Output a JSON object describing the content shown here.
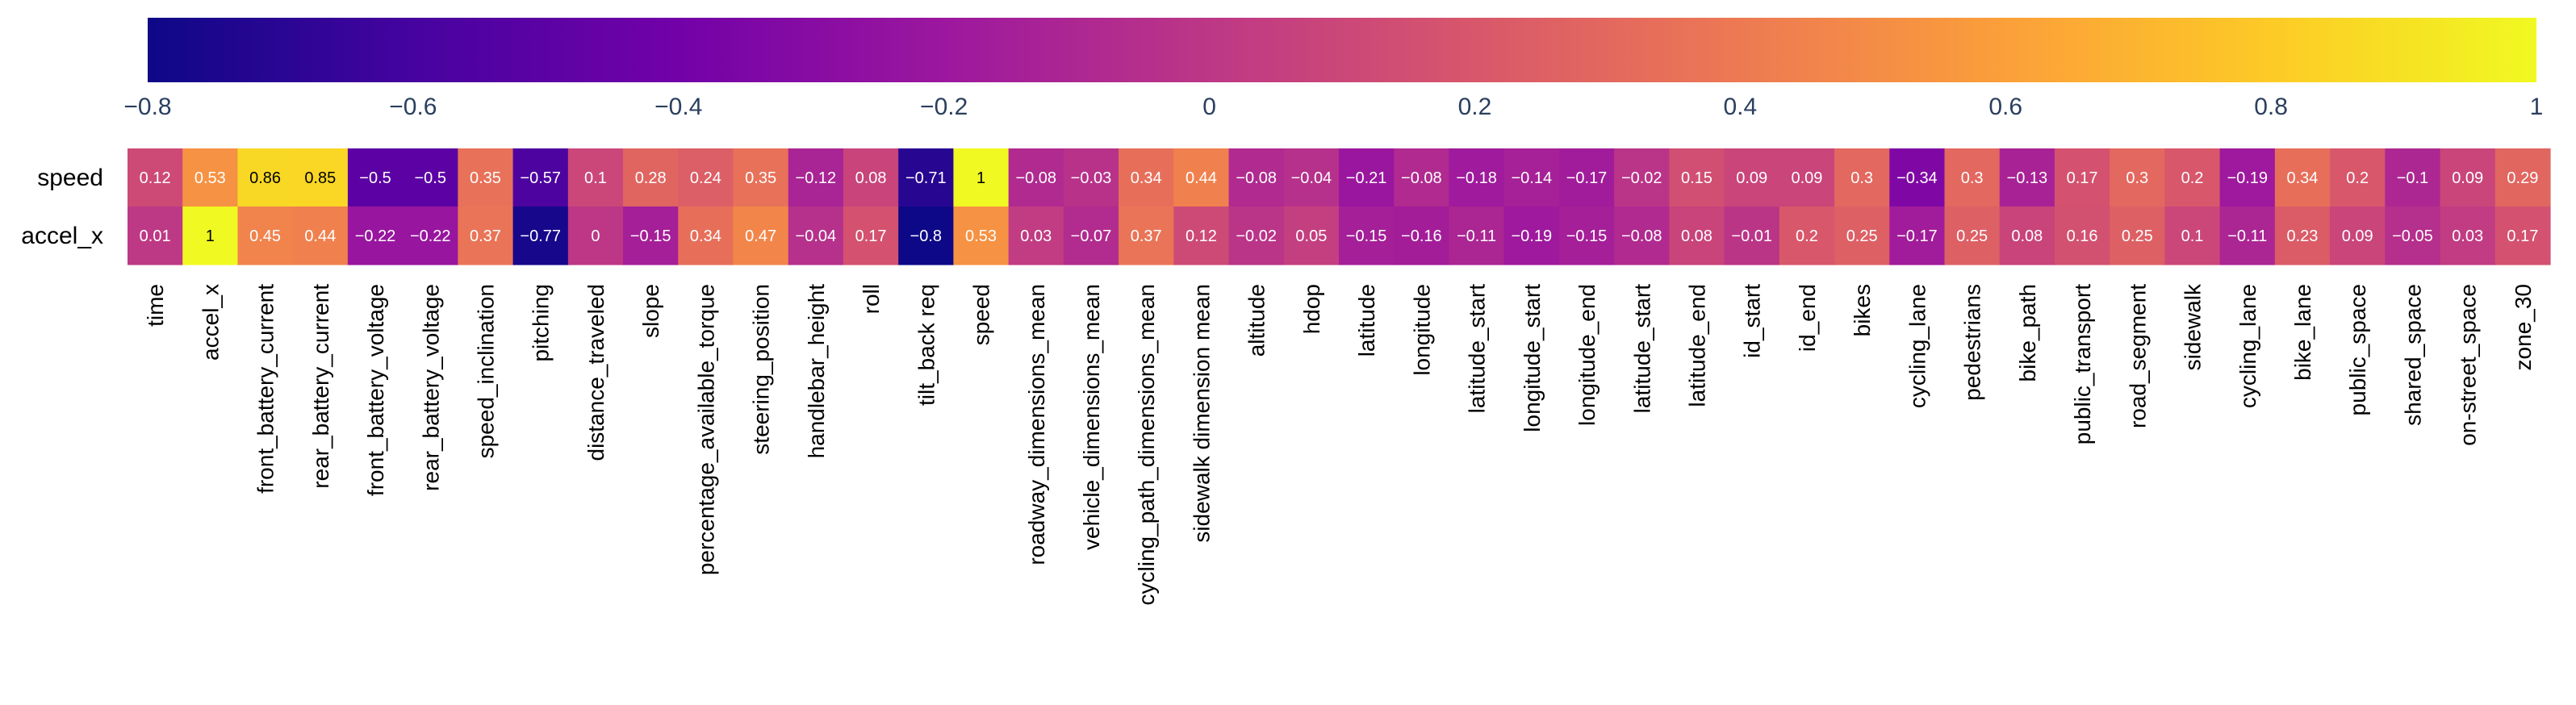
{
  "chart_data": {
    "type": "heatmap",
    "title": "",
    "rows": [
      "speed",
      "accel_x"
    ],
    "columns": [
      "time",
      "accel_x",
      "front_battery_current",
      "rear_battery_current",
      "front_battery_voltage",
      "rear_battery_voltage",
      "speed_inclination",
      "pitching",
      "distance_traveled",
      "slope",
      "percentage_available_torque",
      "steering_position",
      "handlebar_height",
      "roll",
      "tilt_back req",
      "speed",
      "roadway_dimensions_mean",
      "vehicle_dimensions_mean",
      "cycling_path_dimensions_mean",
      "sidewalk dimension mean",
      "altitude",
      "hdop",
      "latitude",
      "longitude",
      "latitude_start",
      "longitude_start",
      "longitude_end",
      "latitude_start",
      "latitude_end",
      "id_start",
      "id_end",
      "bikes",
      "cycling_lane",
      "pedestrians",
      "bike_path",
      "public_transport",
      "road_segment",
      "sidewalk",
      "cycling_lane",
      "bike_lane",
      "public_space",
      "shared_space",
      "on-street_space",
      "zone_30"
    ],
    "values": [
      [
        0.12,
        0.53,
        0.86,
        0.85,
        -0.5,
        -0.5,
        0.35,
        -0.57,
        0.1,
        0.28,
        0.24,
        0.35,
        -0.12,
        0.08,
        -0.71,
        1,
        -0.08,
        -0.03,
        0.34,
        0.44,
        -0.08,
        -0.04,
        -0.21,
        -0.08,
        -0.18,
        -0.14,
        -0.17,
        -0.02,
        0.15,
        0.09,
        0.09,
        0.3,
        -0.34,
        0.3,
        -0.13,
        0.17,
        0.3,
        0.2,
        -0.19,
        0.34,
        0.2,
        -0.1,
        0.09,
        0.29
      ],
      [
        0.01,
        1,
        0.45,
        0.44,
        -0.22,
        -0.22,
        0.37,
        -0.77,
        0,
        -0.15,
        0.34,
        0.47,
        -0.04,
        0.17,
        -0.8,
        0.53,
        0.03,
        -0.07,
        0.37,
        0.12,
        -0.02,
        0.05,
        -0.15,
        -0.16,
        -0.11,
        -0.19,
        -0.15,
        -0.08,
        0.08,
        -0.01,
        0.2,
        0.25,
        -0.17,
        0.25,
        0.08,
        0.16,
        0.25,
        0.1,
        -0.11,
        0.23,
        0.09,
        -0.05,
        0.03,
        0.17
      ]
    ],
    "colorscale": "plasma",
    "zmin": -0.8,
    "zmax": 1,
    "colorbar": {
      "orientation": "horizontal",
      "position": "top",
      "ticks": [
        -0.8,
        -0.6,
        -0.4,
        -0.2,
        0,
        0.2,
        0.4,
        0.6,
        0.8,
        1
      ],
      "tick_labels": [
        "−0.8",
        "−0.6",
        "−0.4",
        "−0.2",
        "0",
        "0.2",
        "0.4",
        "0.6",
        "0.8",
        "1"
      ]
    },
    "cell_labels": [
      [
        "0.12",
        "0.53",
        "0.86",
        "0.85",
        "−0.5",
        "−0.5",
        "0.35",
        "−0.57",
        "0.1",
        "0.28",
        "0.24",
        "0.35",
        "−0.12",
        "0.08",
        "−0.71",
        "1",
        "−0.08",
        "−0.03",
        "0.34",
        "0.44",
        "−0.08",
        "−0.04",
        "−0.21",
        "−0.08",
        "−0.18",
        "−0.14",
        "−0.17",
        "−0.02",
        "0.15",
        "0.09",
        "0.09",
        "0.3",
        "−0.34",
        "0.3",
        "−0.13",
        "0.17",
        "0.3",
        "0.2",
        "−0.19",
        "0.34",
        "0.2",
        "−0.1",
        "0.09",
        "0.29"
      ],
      [
        "0.01",
        "1",
        "0.45",
        "0.44",
        "−0.22",
        "−0.22",
        "0.37",
        "−0.77",
        "0",
        "−0.15",
        "0.34",
        "0.47",
        "−0.04",
        "0.17",
        "−0.8",
        "0.53",
        "0.03",
        "−0.07",
        "0.37",
        "0.12",
        "−0.02",
        "0.05",
        "−0.15",
        "−0.16",
        "−0.11",
        "−0.19",
        "−0.15",
        "−0.08",
        "0.08",
        "−0.01",
        "0.2",
        "0.25",
        "−0.17",
        "0.25",
        "0.08",
        "0.16",
        "0.25",
        "0.1",
        "−0.11",
        "0.23",
        "0.09",
        "−0.05",
        "0.03",
        "0.17"
      ]
    ],
    "colors": {
      "plasma_stops": [
        "#0d0887",
        "#46039f",
        "#7201a8",
        "#9c179e",
        "#bd3786",
        "#d8576b",
        "#ed7953",
        "#fb9f3a",
        "#fdca26",
        "#f0f921"
      ],
      "tick_text": "#2a3f5f",
      "label_text": "#000000",
      "cell_text_light": "#ffffff",
      "cell_text_dark": "#000000"
    }
  }
}
